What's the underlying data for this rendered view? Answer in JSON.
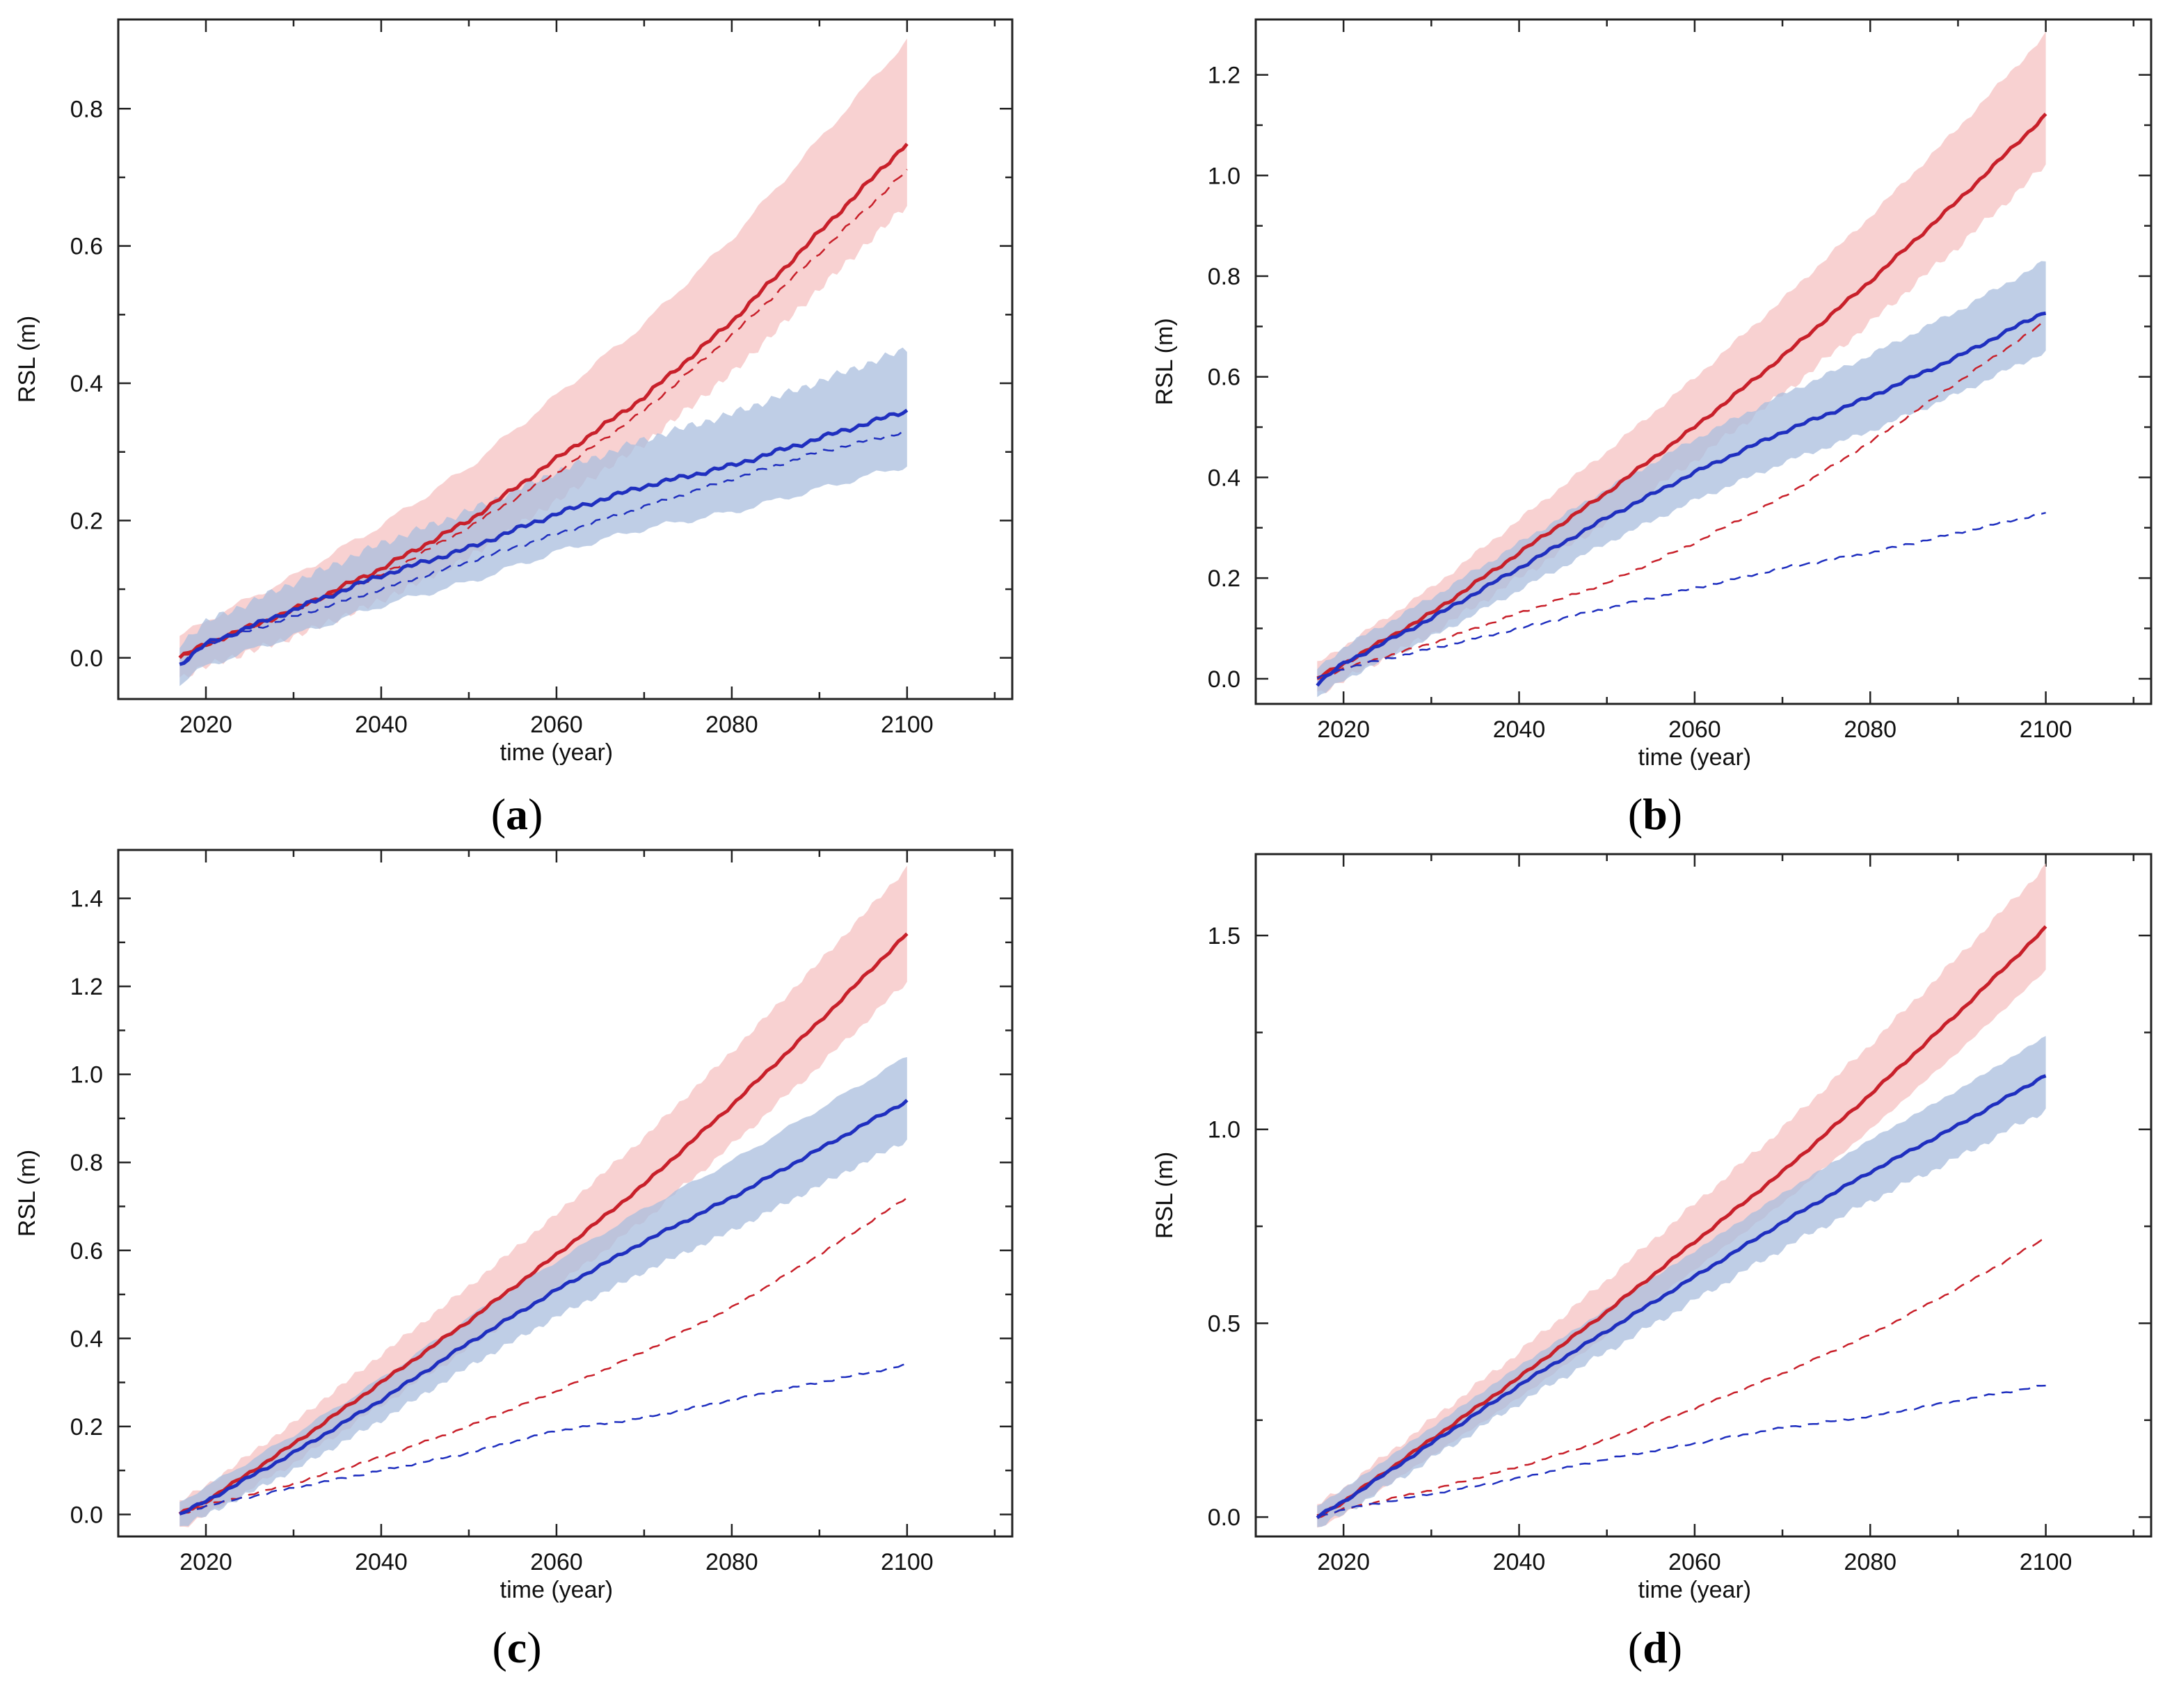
{
  "colors": {
    "red_line": "#c8202a",
    "red_band": "#f7c9c9",
    "blue_line": "#1f2fbf",
    "blue_band": "#a9bedd",
    "axis": "#222222"
  },
  "chart_data": [
    {
      "type": "line",
      "panel": "a",
      "panel_label": "a",
      "xlabel": "time (year)",
      "ylabel": "RSL (m)",
      "xlim": [
        2010,
        2112
      ],
      "ylim": [
        -0.06,
        0.93
      ],
      "x_ticks": [
        2020,
        2040,
        2060,
        2080,
        2100
      ],
      "x_tick_labels": [
        "2020",
        "2040",
        "2060",
        "2080",
        "2100"
      ],
      "y_ticks": [
        0.0,
        0.2,
        0.4,
        0.6,
        0.8
      ],
      "y_tick_labels": [
        "0.0",
        "0.2",
        "0.4",
        "0.6",
        "0.8"
      ],
      "x": [
        2017,
        2020,
        2030,
        2040,
        2050,
        2060,
        2070,
        2080,
        2090,
        2100
      ],
      "series": [
        {
          "name": "red",
          "style": "solid",
          "band": [
            0.06,
            0.12
          ],
          "values": [
            0.0,
            0.02,
            0.07,
            0.13,
            0.2,
            0.29,
            0.38,
            0.49,
            0.62,
            0.75
          ]
        },
        {
          "name": "red-dashed",
          "style": "dashed",
          "values": [
            0.0,
            0.02,
            0.07,
            0.12,
            0.19,
            0.27,
            0.36,
            0.47,
            0.59,
            0.71
          ]
        },
        {
          "name": "blue",
          "style": "solid",
          "band": [
            0.05,
            0.06
          ],
          "values": [
            -0.01,
            0.02,
            0.07,
            0.12,
            0.16,
            0.21,
            0.25,
            0.28,
            0.32,
            0.36
          ]
        },
        {
          "name": "blue-dashed",
          "style": "dashed",
          "values": [
            -0.01,
            0.02,
            0.06,
            0.1,
            0.14,
            0.18,
            0.22,
            0.26,
            0.3,
            0.33
          ]
        }
      ]
    },
    {
      "type": "line",
      "panel": "b",
      "panel_label": "b",
      "xlabel": "time (year)",
      "ylabel": "RSL (m)",
      "xlim": [
        2010,
        2112
      ],
      "ylim": [
        -0.05,
        1.31
      ],
      "x_ticks": [
        2020,
        2040,
        2060,
        2080,
        2100
      ],
      "x_tick_labels": [
        "2020",
        "2040",
        "2060",
        "2080",
        "2100"
      ],
      "y_ticks": [
        0.0,
        0.2,
        0.4,
        0.6,
        0.8,
        1.0,
        1.2
      ],
      "y_tick_labels": [
        "0.0",
        "0.2",
        "0.4",
        "0.6",
        "0.8",
        "1.0",
        "1.2"
      ],
      "x": [
        2017,
        2020,
        2030,
        2040,
        2050,
        2060,
        2070,
        2080,
        2090,
        2100
      ],
      "series": [
        {
          "name": "red",
          "style": "solid",
          "band": [
            0.07,
            0.13
          ],
          "values": [
            0.0,
            0.03,
            0.13,
            0.25,
            0.37,
            0.5,
            0.64,
            0.79,
            0.95,
            1.12
          ]
        },
        {
          "name": "red-dashed",
          "style": "dashed",
          "values": [
            0.0,
            0.02,
            0.07,
            0.13,
            0.19,
            0.27,
            0.36,
            0.47,
            0.59,
            0.71
          ]
        },
        {
          "name": "blue",
          "style": "solid",
          "band": [
            0.05,
            0.07
          ],
          "values": [
            -0.01,
            0.03,
            0.12,
            0.22,
            0.32,
            0.41,
            0.49,
            0.56,
            0.64,
            0.73
          ]
        },
        {
          "name": "blue-dashed",
          "style": "dashed",
          "values": [
            0.0,
            0.02,
            0.06,
            0.1,
            0.14,
            0.18,
            0.22,
            0.25,
            0.29,
            0.33
          ]
        }
      ]
    },
    {
      "type": "line",
      "panel": "c",
      "panel_label": "c",
      "xlabel": "time (year)",
      "ylabel": "RSL (m)",
      "xlim": [
        2010,
        2112
      ],
      "ylim": [
        -0.05,
        1.51
      ],
      "x_ticks": [
        2020,
        2040,
        2060,
        2080,
        2100
      ],
      "x_tick_labels": [
        "2020",
        "2040",
        "2060",
        "2080",
        "2100"
      ],
      "y_ticks": [
        0.0,
        0.2,
        0.4,
        0.6,
        0.8,
        1.0,
        1.2,
        1.4
      ],
      "y_tick_labels": [
        "0.0",
        "0.2",
        "0.4",
        "0.6",
        "0.8",
        "1.0",
        "1.2",
        "1.4"
      ],
      "x": [
        2017,
        2020,
        2030,
        2040,
        2050,
        2060,
        2070,
        2080,
        2090,
        2100
      ],
      "series": [
        {
          "name": "red",
          "style": "solid",
          "band": [
            0.08,
            0.12
          ],
          "values": [
            0.0,
            0.03,
            0.16,
            0.3,
            0.44,
            0.59,
            0.75,
            0.93,
            1.12,
            1.32
          ]
        },
        {
          "name": "red-dashed",
          "style": "dashed",
          "values": [
            0.0,
            0.02,
            0.07,
            0.13,
            0.2,
            0.28,
            0.37,
            0.47,
            0.59,
            0.72
          ]
        },
        {
          "name": "blue",
          "style": "solid",
          "band": [
            0.06,
            0.07
          ],
          "values": [
            0.0,
            0.03,
            0.14,
            0.26,
            0.39,
            0.51,
            0.62,
            0.72,
            0.83,
            0.94
          ]
        },
        {
          "name": "blue-dashed",
          "style": "dashed",
          "values": [
            0.0,
            0.02,
            0.06,
            0.1,
            0.14,
            0.19,
            0.22,
            0.26,
            0.3,
            0.34
          ]
        }
      ]
    },
    {
      "type": "line",
      "panel": "d",
      "panel_label": "d",
      "xlabel": "time (year)",
      "ylabel": "RSL (m)",
      "xlim": [
        2010,
        2112
      ],
      "ylim": [
        -0.05,
        1.71
      ],
      "x_ticks": [
        2020,
        2040,
        2060,
        2080,
        2100
      ],
      "x_tick_labels": [
        "2020",
        "2040",
        "2060",
        "2080",
        "2100"
      ],
      "y_ticks": [
        0.0,
        0.5,
        1.0,
        1.5
      ],
      "y_tick_labels": [
        "0.0",
        "0.5",
        "1.0",
        "1.5"
      ],
      "x": [
        2017,
        2020,
        2030,
        2040,
        2050,
        2060,
        2070,
        2080,
        2090,
        2100
      ],
      "series": [
        {
          "name": "red",
          "style": "solid",
          "band": [
            0.08,
            0.13
          ],
          "values": [
            0.0,
            0.04,
            0.2,
            0.36,
            0.53,
            0.71,
            0.89,
            1.09,
            1.3,
            1.52
          ]
        },
        {
          "name": "red-dashed",
          "style": "dashed",
          "values": [
            0.0,
            0.02,
            0.07,
            0.13,
            0.2,
            0.28,
            0.37,
            0.47,
            0.59,
            0.72
          ]
        },
        {
          "name": "blue",
          "style": "solid",
          "band": [
            0.06,
            0.07
          ],
          "values": [
            0.0,
            0.04,
            0.19,
            0.34,
            0.48,
            0.62,
            0.76,
            0.89,
            1.01,
            1.14
          ]
        },
        {
          "name": "blue-dashed",
          "style": "dashed",
          "values": [
            0.0,
            0.02,
            0.06,
            0.1,
            0.15,
            0.19,
            0.23,
            0.26,
            0.3,
            0.34
          ]
        }
      ]
    }
  ]
}
